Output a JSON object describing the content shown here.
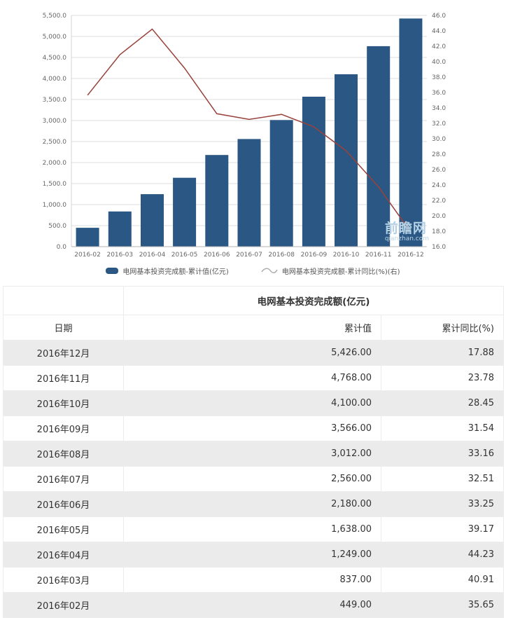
{
  "chart": {
    "watermark": {
      "line1": "前瞻网",
      "line2": "qianzhan.com"
    },
    "colors": {
      "bar": "#2a5784",
      "line": "#99423c",
      "grid": "#dcdcdc",
      "axis_line": "#b3b3b3",
      "left_axis_line": "#d5d5d5",
      "axis_text": "#666666",
      "legend_line_icon": "#aaaaaa"
    }
  },
  "chart_data": {
    "type": "bar",
    "subtype": "bar+line dual axis",
    "categories": [
      "2016-02",
      "2016-03",
      "2016-04",
      "2016-05",
      "2016-06",
      "2016-07",
      "2016-08",
      "2016-09",
      "2016-10",
      "2016-11",
      "2016-12"
    ],
    "series": [
      {
        "name": "电网基本投资完成额-累计值(亿元)",
        "type": "bar",
        "axis": "left",
        "color": "#2a5784",
        "values": [
          449,
          837,
          1249,
          1638,
          2180,
          2560,
          3012,
          3566,
          4100,
          4768,
          5426
        ]
      },
      {
        "name": "电网基本投资完成额-累计同比(%)(右)",
        "type": "line",
        "axis": "right",
        "color": "#99423c",
        "values": [
          35.65,
          40.91,
          44.23,
          39.17,
          33.25,
          32.51,
          33.16,
          31.54,
          28.45,
          23.78,
          17.88
        ]
      }
    ],
    "left_axis": {
      "min": 0,
      "max": 5500,
      "step": 500
    },
    "right_axis": {
      "min": 16,
      "max": 46,
      "step": 2
    },
    "grid": true,
    "legend_position": "bottom"
  },
  "table": {
    "title": "电网基本投资完成额(亿元)",
    "columns": [
      "日期",
      "累计值",
      "累计同比(%)"
    ],
    "rows": [
      [
        "2016年12月",
        "5,426.00",
        "17.88"
      ],
      [
        "2016年11月",
        "4,768.00",
        "23.78"
      ],
      [
        "2016年10月",
        "4,100.00",
        "28.45"
      ],
      [
        "2016年09月",
        "3,566.00",
        "31.54"
      ],
      [
        "2016年08月",
        "3,012.00",
        "33.16"
      ],
      [
        "2016年07月",
        "2,560.00",
        "32.51"
      ],
      [
        "2016年06月",
        "2,180.00",
        "33.25"
      ],
      [
        "2016年05月",
        "1,638.00",
        "39.17"
      ],
      [
        "2016年04月",
        "1,249.00",
        "44.23"
      ],
      [
        "2016年03月",
        "837.00",
        "40.91"
      ],
      [
        "2016年02月",
        "449.00",
        "35.65"
      ]
    ]
  }
}
